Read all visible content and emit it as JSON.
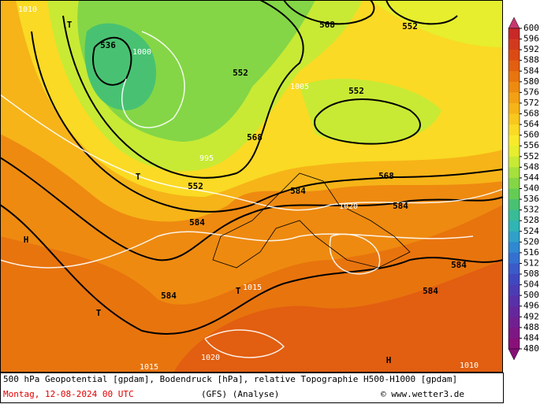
{
  "map": {
    "labels": [
      "1010",
      "536",
      "1000",
      "1005",
      "552",
      "568",
      "552",
      "552",
      "568",
      "584",
      "568",
      "552",
      "584",
      "584",
      "584",
      "584",
      "584",
      "H",
      "T",
      "T",
      "T",
      "T",
      "H",
      "1015",
      "1020",
      "1015",
      "1020",
      "1010",
      "995"
    ],
    "caption": "500 hPa Geopotential [gpdam], Bodendruck [hPa], relative Topographie H500-H1000 [gpdam]",
    "date": "Montag, 12-08-2024  00 UTC",
    "model": "(GFS)  (Analyse)",
    "credit": "© www.wetter3.de"
  },
  "colorbar": {
    "levels": [
      600,
      596,
      592,
      588,
      584,
      580,
      576,
      572,
      568,
      564,
      560,
      556,
      552,
      548,
      544,
      540,
      536,
      532,
      528,
      524,
      520,
      516,
      512,
      508,
      504,
      500,
      496,
      492,
      488,
      484,
      480
    ],
    "colors": [
      "#c83870",
      "#c82828",
      "#d23a1e",
      "#dc4a14",
      "#e25e10",
      "#e8740e",
      "#ee8a10",
      "#f2a014",
      "#f6b418",
      "#f8c81e",
      "#fada24",
      "#f8ea2a",
      "#e6ee2e",
      "#c8ea34",
      "#a6e03c",
      "#84d646",
      "#64cc54",
      "#48c272",
      "#38bc96",
      "#30b4b4",
      "#30a0c8",
      "#3088d0",
      "#3470d0",
      "#3a5ac8",
      "#4048c0",
      "#4c3cb4",
      "#5830a8",
      "#64289c",
      "#702090",
      "#7c1884",
      "#881078"
    ]
  }
}
